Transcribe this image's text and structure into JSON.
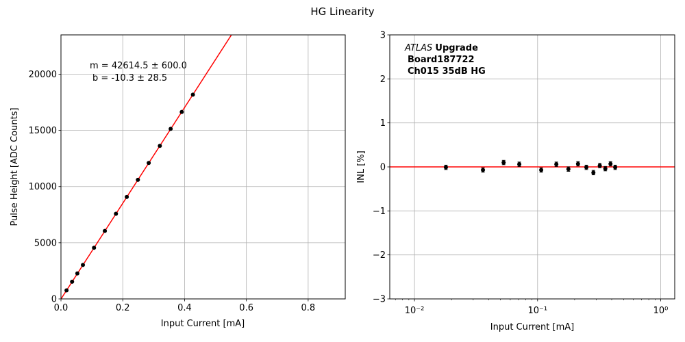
{
  "figure": {
    "title": "HG Linearity"
  },
  "chart_data": [
    {
      "type": "scatter",
      "title": "",
      "xlabel": "Input Current [mA]",
      "ylabel": "Pulse Height [ADC Counts]",
      "xlim": [
        0,
        0.92
      ],
      "ylim": [
        0,
        23500
      ],
      "grid": true,
      "xticks": [
        0,
        0.2,
        0.4,
        0.6,
        0.8
      ],
      "xtick_labels": [
        "0.0",
        "0.2",
        "0.4",
        "0.6",
        "0.8"
      ],
      "yticks": [
        0,
        5000,
        10000,
        15000,
        20000
      ],
      "ytick_labels": [
        "0",
        "5000",
        "10000",
        "15000",
        "20000"
      ],
      "annotation": [
        "m = 42614.5 ± 600.0",
        "b = -10.3 ± 28.5"
      ],
      "fit": {
        "slope": 42614.5,
        "intercept": -10.3,
        "color": "#ff0000"
      },
      "series": [
        {
          "marker_color": "#000000",
          "x": [
            0.018,
            0.036,
            0.053,
            0.071,
            0.107,
            0.142,
            0.178,
            0.213,
            0.249,
            0.284,
            0.32,
            0.355,
            0.391,
            0.427
          ],
          "y": [
            760,
            1530,
            2270,
            3020,
            4550,
            6050,
            7580,
            9080,
            10600,
            12100,
            13620,
            15140,
            16640,
            18180
          ]
        }
      ]
    },
    {
      "type": "scatter",
      "title": "",
      "xlabel": "Input Current [mA]",
      "ylabel": "INL [%]",
      "xscale": "log",
      "xlim": [
        0.0063,
        1.3
      ],
      "ylim": [
        -3,
        3
      ],
      "grid": true,
      "xticks": [
        0.01,
        0.1,
        1
      ],
      "xtick_labels": [
        "10⁻²",
        "10⁻¹",
        "10⁰"
      ],
      "yticks": [
        -3,
        -2,
        -1,
        0,
        1,
        2,
        3
      ],
      "ytick_labels": [
        "−3",
        "−2",
        "−1",
        "0",
        "1",
        "2",
        "3"
      ],
      "annotation": {
        "experiment_italic": "ATLAS",
        "experiment_bold": "Upgrade",
        "board": "Board187722",
        "channel": "Ch015 35dB HG"
      },
      "reference_line": {
        "y": 0,
        "color": "#ff0000"
      },
      "series": [
        {
          "marker_color": "#000000",
          "x": [
            0.018,
            0.036,
            0.053,
            0.071,
            0.107,
            0.142,
            0.178,
            0.213,
            0.249,
            0.284,
            0.32,
            0.355,
            0.391,
            0.427
          ],
          "y": [
            -0.01,
            -0.07,
            0.1,
            0.06,
            -0.07,
            0.06,
            -0.05,
            0.07,
            -0.01,
            -0.13,
            0.03,
            -0.04,
            0.07,
            -0.01
          ],
          "yerr": [
            0.05,
            0.05,
            0.05,
            0.05,
            0.05,
            0.05,
            0.05,
            0.05,
            0.05,
            0.05,
            0.05,
            0.05,
            0.05,
            0.05
          ]
        }
      ]
    }
  ]
}
